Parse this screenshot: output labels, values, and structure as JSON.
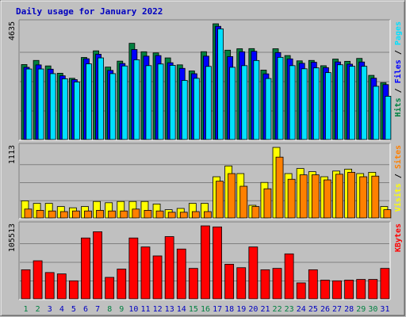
{
  "chart_data": {
    "type": "bar",
    "title": "Daily usage for January 2022",
    "categories": [
      "1",
      "2",
      "3",
      "4",
      "5",
      "6",
      "7",
      "8",
      "9",
      "10",
      "11",
      "12",
      "13",
      "14",
      "15",
      "16",
      "17",
      "18",
      "19",
      "20",
      "21",
      "22",
      "23",
      "24",
      "25",
      "26",
      "27",
      "28",
      "29",
      "30",
      "31"
    ],
    "weekend_days": [
      "1",
      "2",
      "8",
      "9",
      "15",
      "16",
      "22",
      "23",
      "29",
      "30"
    ],
    "colors": {
      "hits": "#008040",
      "files": "#0000ff",
      "pages": "#00e0ff",
      "visits": "#ffff00",
      "sites": "#ff8000",
      "kbytes": "#ff0000",
      "weekday_label": "#0000c0",
      "weekend_label": "#008040",
      "title": "#0000c0"
    },
    "panels": [
      {
        "id": "requests",
        "ymax_label": "4635",
        "ylim": [
          0,
          4635
        ],
        "side_label": [
          {
            "text": "Hits",
            "color": "#008040"
          },
          {
            "text": " / ",
            "color": "#000000"
          },
          {
            "text": "Files",
            "color": "#0000ff"
          },
          {
            "text": " / ",
            "color": "#000000"
          },
          {
            "text": "Pages",
            "color": "#00e0ff"
          }
        ],
        "series": [
          {
            "name": "Hits",
            "color": "#008040",
            "values": [
              3002,
              3167,
              2947,
              2654,
              2452,
              3286,
              3551,
              2901,
              3139,
              3853,
              3514,
              3468,
              3268,
              2990,
              2746,
              3517,
              4635,
              3578,
              3635,
              3641,
              2780,
              3635,
              3363,
              3150,
              3167,
              2955,
              3222,
              3132,
              3248,
              2569,
              2277
            ]
          },
          {
            "name": "Files",
            "color": "#0000ff",
            "values": [
              2892,
              2988,
              2816,
              2551,
              2399,
              3235,
              3416,
              2767,
              3045,
              3604,
              3338,
              3362,
              3075,
              2849,
              2635,
              3338,
              4533,
              3321,
              3514,
              3533,
              2629,
              3482,
              3229,
              3053,
              3094,
              2878,
              3107,
              3017,
              3104,
              2455,
              2198
            ]
          },
          {
            "name": "Pages",
            "color": "#00e0ff",
            "values": [
              2824,
              2824,
              2637,
              2431,
              2304,
              3030,
              3269,
              2638,
              2945,
              3193,
              2958,
              3024,
              2970,
              2365,
              2450,
              2927,
              4432,
              2892,
              2958,
              3164,
              2442,
              3291,
              2958,
              2832,
              2868,
              2679,
              2993,
              2932,
              2932,
              2130,
              1732
            ]
          }
        ]
      },
      {
        "id": "visits",
        "ymax_label": "1113",
        "ylim": [
          0,
          1113
        ],
        "side_label": [
          {
            "text": "Visits",
            "color": "#ffff00"
          },
          {
            "text": " / ",
            "color": "#000000"
          },
          {
            "text": "Sites",
            "color": "#ff8000"
          }
        ],
        "series": [
          {
            "name": "Visits",
            "color": "#ffff00",
            "values": [
              270,
              230,
              230,
              180,
              160,
              180,
              260,
              240,
              260,
              260,
              260,
              220,
              130,
              150,
              230,
              230,
              650,
              820,
              700,
              200,
              560,
              1113,
              700,
              780,
              730,
              650,
              740,
              770,
              700,
              720,
              180
            ]
          },
          {
            "name": "Sites",
            "color": "#ff8000",
            "values": [
              140,
              120,
              110,
              100,
              110,
              110,
              120,
              110,
              110,
              140,
              120,
              110,
              90,
              90,
              100,
              100,
              580,
              700,
              500,
              180,
              460,
              960,
              610,
              680,
              680,
              600,
              690,
              720,
              650,
              660,
              130
            ]
          }
        ]
      },
      {
        "id": "kbytes",
        "ymax_label": "105513",
        "ylim": [
          0,
          105513
        ],
        "side_label": [
          {
            "text": "KBytes",
            "color": "#ff0000"
          }
        ],
        "series": [
          {
            "name": "KBytes",
            "color": "#ff0000",
            "values": [
              42000,
              55000,
              38000,
              36000,
              26000,
              88000,
              97000,
              31000,
              43000,
              88000,
              75000,
              62000,
              90000,
              72000,
              44000,
              105513,
              104000,
              50000,
              45000,
              75000,
              42000,
              44000,
              65000,
              23000,
              42000,
              27000,
              26000,
              27000,
              28000,
              28000,
              44000
            ]
          }
        ]
      }
    ]
  }
}
